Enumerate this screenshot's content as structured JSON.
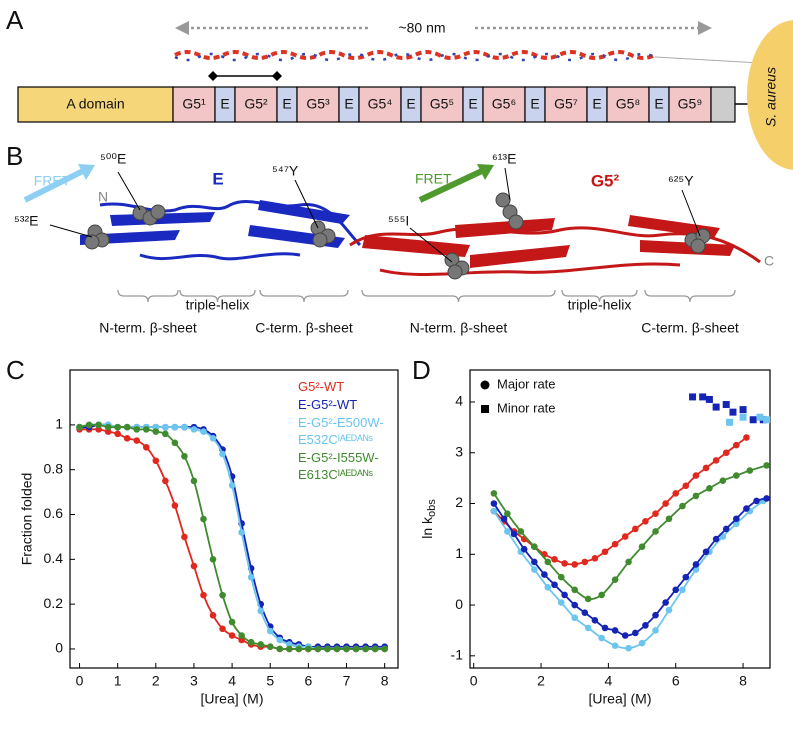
{
  "panel_labels": [
    "A",
    "B",
    "C",
    "D"
  ],
  "panel_a": {
    "span_label": "~80 nm",
    "organism": "S. aureus",
    "domains": [
      "A domain",
      "G5¹",
      "E",
      "G5²",
      "E",
      "G5³",
      "E",
      "G5⁴",
      "E",
      "G5⁵",
      "E",
      "G5⁶",
      "E",
      "G5⁷",
      "E",
      "G5⁸",
      "E",
      "G5⁹"
    ]
  },
  "panel_b": {
    "fret_e": "FRET",
    "n_term": "N",
    "res_500": "⁵⁰⁰E",
    "res_532": "⁵³²E",
    "domain_e": "E",
    "res_547": "⁵⁴⁷Y",
    "fret_g5": "FRET",
    "res_613": "⁶¹³E",
    "res_555": "⁵⁵⁵I",
    "domain_g5": "G5²",
    "res_625": "⁶²⁵Y",
    "c_term": "C",
    "regions": [
      "N-term. β-sheet",
      "triple-helix",
      "C-term. β-sheet",
      "N-term. β-sheet",
      "triple-helix",
      "C-term. β-sheet"
    ]
  },
  "chart_data": [
    {
      "type": "line",
      "x_label": "[Urea] (M)",
      "y_label": "Fraction folded",
      "xlim": [
        -0.25,
        8.35
      ],
      "ylim": [
        -0.085,
        1.245
      ],
      "xticks": [
        0,
        1,
        2,
        3,
        4,
        5,
        6,
        7,
        8
      ],
      "yticks": [
        0,
        0.2,
        0.4,
        0.6,
        0.8,
        1
      ],
      "x": [
        0,
        0.25,
        0.5,
        0.75,
        1,
        1.25,
        1.5,
        1.75,
        2,
        2.25,
        2.5,
        2.75,
        3,
        3.25,
        3.5,
        3.75,
        4,
        4.25,
        4.5,
        4.75,
        5,
        5.25,
        5.5,
        5.75,
        6,
        6.25,
        6.5,
        6.75,
        7,
        7.25,
        7.5,
        7.75,
        8
      ],
      "series": [
        {
          "name": "G5²-WT",
          "color": "#e0281e",
          "marker": "circle",
          "line": true,
          "values": [
            0.98,
            0.98,
            0.98,
            0.97,
            0.96,
            0.94,
            0.93,
            0.9,
            0.84,
            0.75,
            0.64,
            0.5,
            0.37,
            0.24,
            0.15,
            0.09,
            0.06,
            0.04,
            0.02,
            0.01,
            0.01,
            0,
            0,
            0,
            0,
            0,
            0,
            0,
            0,
            0,
            0,
            0,
            0
          ]
        },
        {
          "name": "E-G5²-WT",
          "color": "#1524b4",
          "marker": "circle",
          "line": true,
          "values": [
            0.99,
            0.99,
            1,
            1,
            0.99,
            0.99,
            0.99,
            0.99,
            0.99,
            0.99,
            0.99,
            0.99,
            0.99,
            0.98,
            0.95,
            0.89,
            0.77,
            0.56,
            0.36,
            0.2,
            0.1,
            0.05,
            0.03,
            0.02,
            0.01,
            0.01,
            0.01,
            0.01,
            0.01,
            0.01,
            0.01,
            0.01,
            0.01
          ]
        },
        {
          "name": "E-G5²-E500W-E532Cᴵᴬᴱᴰᴬᴺˢ",
          "color": "#6cc5ee",
          "marker": "circle",
          "line": true,
          "values": [
            0.99,
            1,
            1,
            1,
            0.99,
            0.99,
            0.99,
            0.99,
            0.99,
            0.99,
            0.99,
            0.99,
            0.98,
            0.97,
            0.94,
            0.87,
            0.73,
            0.52,
            0.32,
            0.17,
            0.08,
            0.04,
            0.02,
            0.01,
            0.01,
            0,
            0,
            0,
            0,
            0,
            0,
            0,
            0
          ]
        },
        {
          "name": "E-G5²-I555W-E613Cᴵᴬᴱᴰᴬᴺˢ",
          "color": "#3f8b2e",
          "marker": "circle",
          "line": true,
          "values": [
            0.99,
            1,
            1,
            0.99,
            0.99,
            0.99,
            0.98,
            0.98,
            0.97,
            0.96,
            0.92,
            0.86,
            0.75,
            0.58,
            0.4,
            0.24,
            0.12,
            0.06,
            0.03,
            0.02,
            0.01,
            0,
            0,
            0,
            0,
            0,
            0,
            0,
            0,
            0,
            0,
            0,
            0
          ]
        }
      ]
    },
    {
      "type": "scatter",
      "x_label": "[Urea] (M)",
      "y_label": {
        "main": "ln k",
        "sub": "obs"
      },
      "xlim": [
        -0.11,
        8.8
      ],
      "ylim": [
        -1.24,
        4.63
      ],
      "xticks": [
        0,
        2,
        4,
        6,
        8
      ],
      "yticks": [
        -1,
        0,
        1,
        2,
        3,
        4
      ],
      "legend": [
        {
          "label": "Major rate",
          "marker": "circle"
        },
        {
          "label": "Minor rate",
          "marker": "square"
        }
      ],
      "series": [
        {
          "color": "#e0281e",
          "marker": "circle",
          "line": true,
          "x": [
            0.6,
            0.9,
            1.2,
            1.5,
            1.8,
            2.1,
            2.4,
            2.7,
            3.0,
            3.3,
            3.6,
            3.9,
            4.2,
            4.5,
            4.8,
            5.1,
            5.4,
            5.7,
            6.0,
            6.3,
            6.6,
            6.9,
            7.2,
            7.5,
            7.8,
            8.1
          ],
          "values": [
            1.85,
            1.65,
            1.45,
            1.3,
            1.15,
            1.0,
            0.9,
            0.82,
            0.8,
            0.85,
            0.92,
            1.05,
            1.2,
            1.35,
            1.5,
            1.65,
            1.8,
            2.0,
            2.2,
            2.35,
            2.55,
            2.7,
            2.85,
            3.0,
            3.15,
            3.3
          ]
        },
        {
          "color": "#3f8b2e",
          "marker": "circle",
          "line": true,
          "x": [
            0.6,
            1.0,
            1.4,
            1.8,
            2.2,
            2.6,
            3.0,
            3.4,
            3.8,
            4.2,
            4.6,
            5.0,
            5.4,
            5.8,
            6.2,
            6.6,
            7.0,
            7.4,
            7.8,
            8.2,
            8.7
          ],
          "values": [
            2.2,
            1.8,
            1.45,
            1.15,
            0.85,
            0.55,
            0.3,
            0.12,
            0.2,
            0.5,
            0.85,
            1.15,
            1.45,
            1.7,
            1.95,
            2.15,
            2.3,
            2.45,
            2.55,
            2.65,
            2.75
          ]
        },
        {
          "color": "#6cc5ee",
          "marker": "circle",
          "line": true,
          "x": [
            0.6,
            1.0,
            1.4,
            1.8,
            2.2,
            2.6,
            3.0,
            3.4,
            3.8,
            4.2,
            4.6,
            5.0,
            5.4,
            5.8,
            6.2,
            6.6,
            7.0,
            7.4,
            7.8,
            8.2,
            8.6
          ],
          "values": [
            1.85,
            1.45,
            1.05,
            0.7,
            0.35,
            0.05,
            -0.25,
            -0.45,
            -0.65,
            -0.8,
            -0.85,
            -0.75,
            -0.5,
            -0.1,
            0.3,
            0.7,
            1.05,
            1.35,
            1.6,
            1.85,
            2.05
          ]
        },
        {
          "color": "#1524b4",
          "marker": "circle",
          "line": true,
          "x": [
            0.6,
            0.9,
            1.2,
            1.5,
            1.8,
            2.1,
            2.4,
            2.7,
            3.0,
            3.3,
            3.6,
            3.9,
            4.2,
            4.5,
            4.8,
            5.1,
            5.4,
            5.7,
            6.0,
            6.3,
            6.6,
            6.9,
            7.2,
            7.5,
            7.8,
            8.1,
            8.4,
            8.7
          ],
          "values": [
            2.0,
            1.7,
            1.4,
            1.1,
            0.85,
            0.6,
            0.4,
            0.2,
            0.0,
            -0.15,
            -0.3,
            -0.45,
            -0.5,
            -0.6,
            -0.55,
            -0.4,
            -0.2,
            0.05,
            0.3,
            0.55,
            0.8,
            1.05,
            1.3,
            1.5,
            1.7,
            1.9,
            2.05,
            2.1
          ]
        },
        {
          "color": "#1524b4",
          "marker": "square",
          "line": false,
          "x": [
            6.5,
            6.8,
            7.0,
            7.2,
            7.5,
            7.7,
            8.0,
            8.3,
            8.6
          ],
          "values": [
            4.1,
            4.1,
            4.05,
            3.9,
            3.95,
            3.8,
            3.85,
            3.65,
            3.65
          ]
        },
        {
          "color": "#6cc5ee",
          "marker": "square",
          "line": false,
          "x": [
            7.6,
            8.0,
            8.5,
            8.7
          ],
          "values": [
            3.6,
            3.7,
            3.7,
            3.65
          ]
        }
      ]
    }
  ]
}
